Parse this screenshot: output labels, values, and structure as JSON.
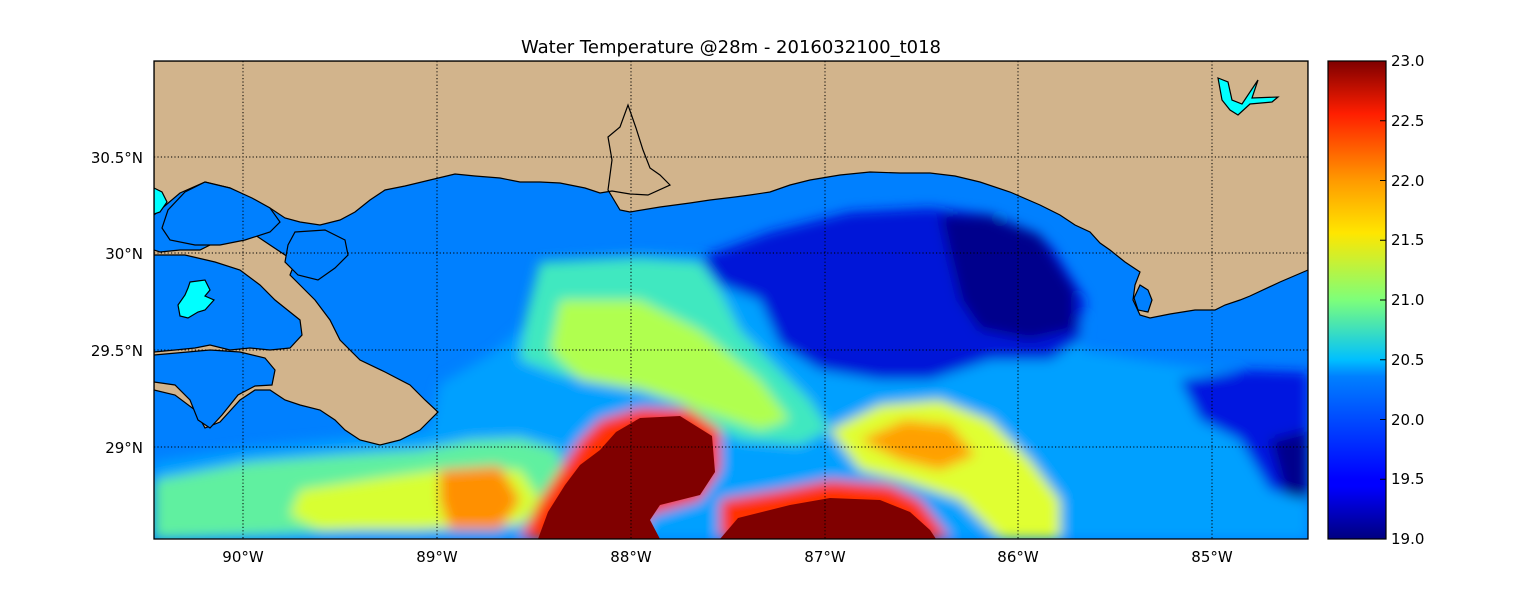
{
  "figure": {
    "title": "Water Temperature @28m - 2016032100_t018"
  },
  "map": {
    "land_color": "#d2b48c",
    "water_color": "#0080ff",
    "lake_color": "#00ffff",
    "lon_range": [
      -90.5,
      -84.5
    ],
    "lat_range": [
      28.55,
      31.0
    ],
    "x_ticks": [
      "90°W",
      "89°W",
      "88°W",
      "87°W",
      "86°W",
      "85°W"
    ],
    "y_ticks": [
      "30.5°N",
      "30°N",
      "29.5°N",
      "29°N"
    ],
    "grid": "dotted"
  },
  "colorbar": {
    "colormap": "jet",
    "min": 19.0,
    "max": 23.0,
    "ticks": [
      "23.0",
      "22.5",
      "22.0",
      "21.5",
      "21.0",
      "20.5",
      "20.0",
      "19.5",
      "19.0"
    ]
  }
}
